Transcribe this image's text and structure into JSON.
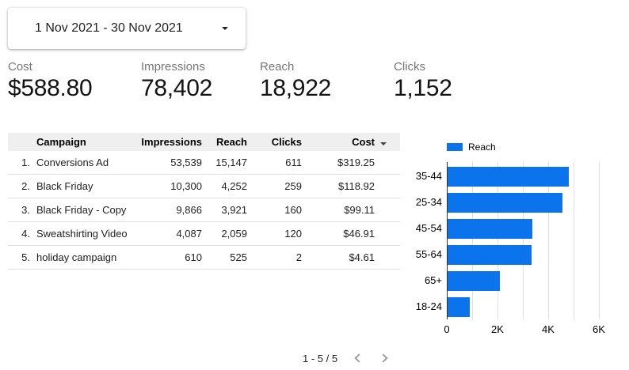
{
  "date_range": {
    "value": "1 Nov 2021 - 30 Nov 2021"
  },
  "scorecards": [
    {
      "label": "Cost",
      "value": "$588.80"
    },
    {
      "label": "Impressions",
      "value": "78,402"
    },
    {
      "label": "Reach",
      "value": "18,922"
    },
    {
      "label": "Clicks",
      "value": "1,152"
    }
  ],
  "table": {
    "columns": [
      "Campaign",
      "Impressions",
      "Reach",
      "Clicks",
      "Cost"
    ],
    "sorted_by": "Cost",
    "sort_direction": "descending",
    "rows": [
      {
        "index": "1.",
        "campaign": "Conversions Ad",
        "impressions": "53,539",
        "reach": "15,147",
        "clicks": "611",
        "cost": "$319.25"
      },
      {
        "index": "2.",
        "campaign": "Black Friday",
        "impressions": "10,300",
        "reach": "4,252",
        "clicks": "259",
        "cost": "$118.92"
      },
      {
        "index": "3.",
        "campaign": "Black Friday - Copy",
        "impressions": "9,866",
        "reach": "3,921",
        "clicks": "160",
        "cost": "$99.11"
      },
      {
        "index": "4.",
        "campaign": "Sweatshirting Video",
        "impressions": "4,087",
        "reach": "2,059",
        "clicks": "120",
        "cost": "$46.91"
      },
      {
        "index": "5.",
        "campaign": "holiday campaign",
        "impressions": "610",
        "reach": "525",
        "clicks": "2",
        "cost": "$4.61"
      }
    ],
    "pagination": {
      "label": "1 - 5 / 5"
    }
  },
  "chart_data": {
    "type": "bar",
    "orientation": "horizontal",
    "title": "",
    "legend": [
      {
        "label": "Reach",
        "color": "#0b74ec"
      }
    ],
    "categories": [
      "35-44",
      "25-34",
      "45-54",
      "55-64",
      "65+",
      "18-24"
    ],
    "values": [
      4770,
      4530,
      3340,
      3310,
      2050,
      870
    ],
    "xlabel": "",
    "ylabel": "",
    "x_ticks": [
      "0",
      "2K",
      "4K",
      "6K"
    ],
    "xlim": [
      0,
      6250
    ],
    "gridline_interval": 1000,
    "grid": true,
    "legend_position": "top"
  },
  "colors": {
    "series_blue": "#0b74ec",
    "table_header_bg": "#efefef",
    "row_border": "#e0e0e0",
    "muted_text": "#757575",
    "chevron_gray": "#9e9e9e"
  }
}
